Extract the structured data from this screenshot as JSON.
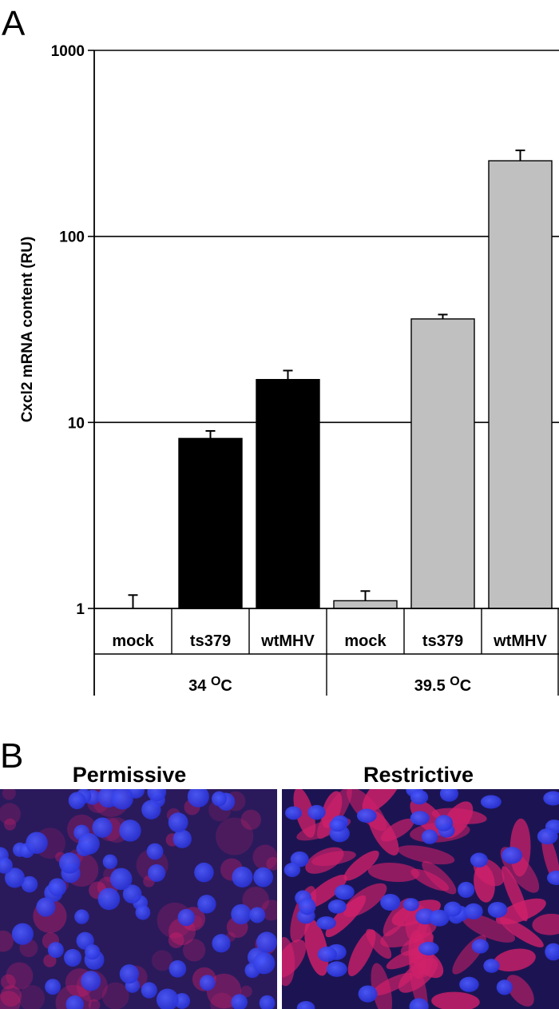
{
  "panels": {
    "a_letter": "A",
    "b_letter": "B"
  },
  "chart_data": {
    "type": "bar",
    "scale": "log",
    "ylim": [
      1,
      1000
    ],
    "yticks": [
      {
        "value": 1,
        "label": "1"
      },
      {
        "value": 10,
        "label": "10"
      },
      {
        "value": 100,
        "label": "100"
      },
      {
        "value": 1000,
        "label": "1000"
      }
    ],
    "ylabel": "Cxcl2 mRNA content (RU)",
    "grid": true,
    "categories": [
      "mock",
      "ts379",
      "wtMHV",
      "mock",
      "ts379",
      "wtMHV"
    ],
    "groups": [
      {
        "label": "34 ",
        "sup": "O",
        "unit": "C",
        "span": [
          0,
          2
        ],
        "color": "#000000"
      },
      {
        "label": "39.5 ",
        "sup": "O",
        "unit": "C",
        "span": [
          3,
          5
        ],
        "color": "#c0c0c0"
      }
    ],
    "values": [
      1.0,
      8.2,
      17,
      1.1,
      36,
      255
    ],
    "errors": [
      1.18,
      9.0,
      19,
      1.24,
      38,
      290
    ]
  },
  "micrographs": {
    "left_label": "Permissive",
    "right_label": "Restrictive"
  },
  "colors": {
    "group_34": "#000000",
    "group_395": "#c0c0c0",
    "micro_bg": "#1c1452",
    "nucleus": "#2d3cf0",
    "stain": "#d0206a"
  }
}
